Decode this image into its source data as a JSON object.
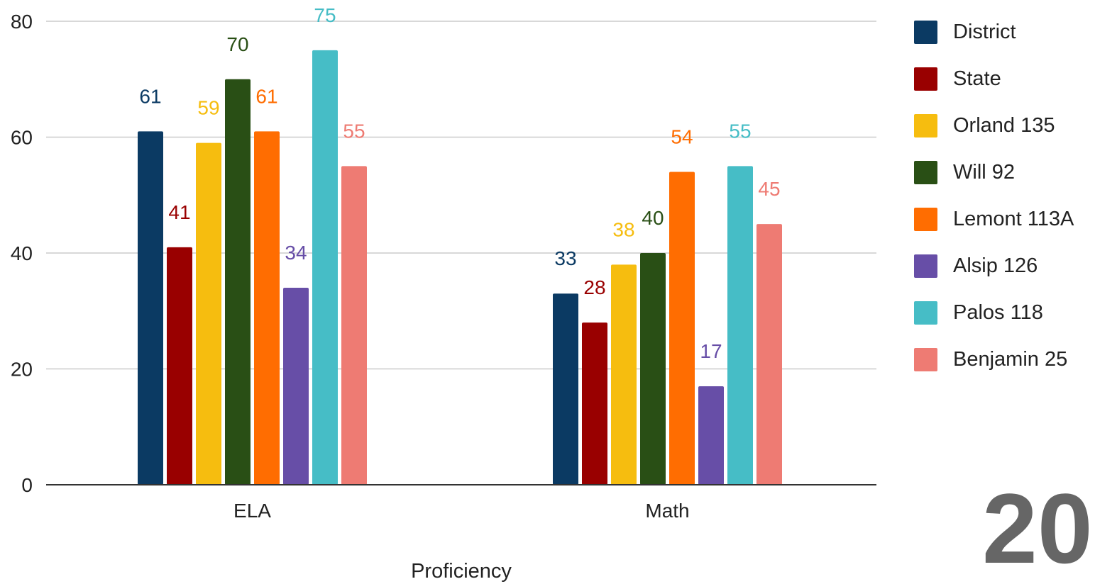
{
  "chart_data": {
    "type": "bar",
    "categories": [
      "ELA",
      "Math"
    ],
    "series": [
      {
        "name": "District",
        "color": "#0b3a63",
        "values": [
          61,
          33
        ]
      },
      {
        "name": "State",
        "color": "#990000",
        "values": [
          41,
          28
        ]
      },
      {
        "name": "Orland 135",
        "color": "#f6bd0f",
        "values": [
          59,
          38
        ]
      },
      {
        "name": "Will 92",
        "color": "#294f15",
        "values": [
          70,
          40
        ]
      },
      {
        "name": "Lemont 113A",
        "color": "#ff6d01",
        "values": [
          61,
          54
        ]
      },
      {
        "name": "Alsip 126",
        "color": "#674ea7",
        "values": [
          34,
          17
        ]
      },
      {
        "name": "Palos 118",
        "color": "#46bdc6",
        "values": [
          75,
          55
        ]
      },
      {
        "name": "Benjamin 25",
        "color": "#ee7b73",
        "values": [
          55,
          45
        ]
      }
    ],
    "xlabel": "Proficiency",
    "ylabel": "",
    "ylim": [
      0,
      80
    ],
    "yticks": [
      0,
      20,
      40,
      60,
      80
    ],
    "grid": true,
    "legend_position": "right",
    "data_labels": true
  },
  "page_number": "20"
}
